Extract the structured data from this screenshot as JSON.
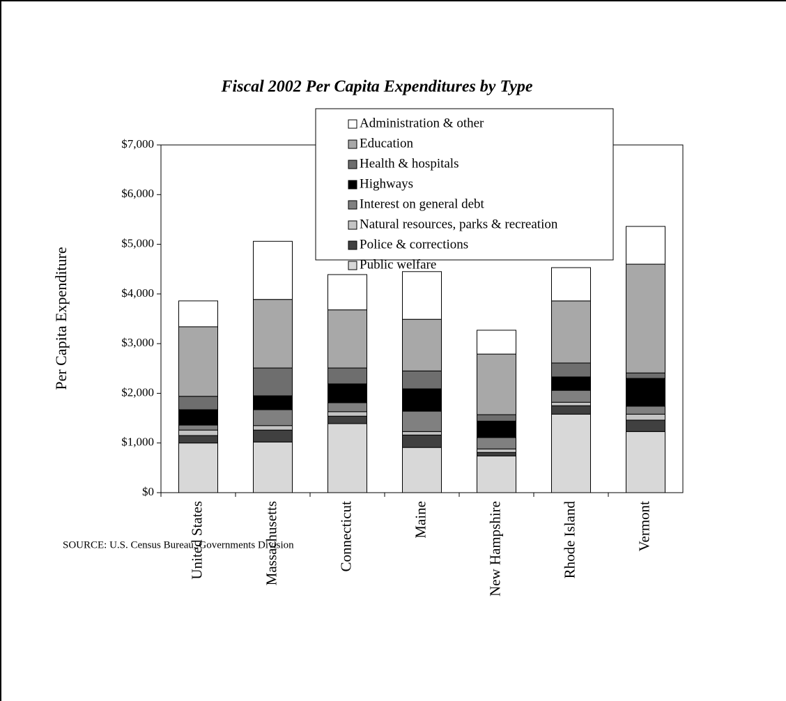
{
  "chart_data": {
    "type": "stacked-bar",
    "title": "Fiscal 2002 Per Capita Expenditures by Type",
    "y_label": "Per Capita Expenditure",
    "source": "SOURCE:  U.S. Census Bureau, Governments Division",
    "categories": [
      "United States",
      "Massachusetts",
      "Connecticut",
      "Maine",
      "New Hampshire",
      "Rhode Island",
      "Vermont"
    ],
    "series": [
      {
        "name": "Public welfare",
        "color": "#d8d8d8",
        "values": [
          1000,
          1020,
          1390,
          910,
          740,
          1580,
          1230
        ]
      },
      {
        "name": "Police & corrections",
        "color": "#404040",
        "values": [
          150,
          240,
          150,
          250,
          70,
          170,
          230
        ]
      },
      {
        "name": "Natural resources, parks & recreation",
        "color": "#c4c4c4",
        "values": [
          110,
          90,
          90,
          70,
          70,
          70,
          120
        ]
      },
      {
        "name": "Interest on general debt",
        "color": "#808080",
        "values": [
          100,
          320,
          180,
          410,
          230,
          240,
          160
        ]
      },
      {
        "name": "Highways",
        "color": "#000000",
        "values": [
          310,
          280,
          380,
          450,
          330,
          270,
          560
        ]
      },
      {
        "name": "Health & hospitals",
        "color": "#6e6e6e",
        "values": [
          270,
          560,
          320,
          360,
          130,
          280,
          110
        ]
      },
      {
        "name": "Education",
        "color": "#a8a8a8",
        "values": [
          1400,
          1380,
          1170,
          1040,
          1220,
          1250,
          2190
        ]
      },
      {
        "name": "Administration & other",
        "color": "#ffffff",
        "values": [
          520,
          1170,
          710,
          960,
          480,
          670,
          760
        ]
      }
    ],
    "ylim": [
      0,
      7000
    ],
    "yticks": [
      {
        "value": 0,
        "label": "$0"
      },
      {
        "value": 1000,
        "label": "$1,000"
      },
      {
        "value": 2000,
        "label": "$2,000"
      },
      {
        "value": 3000,
        "label": "$3,000"
      },
      {
        "value": 4000,
        "label": "$4,000"
      },
      {
        "value": 5000,
        "label": "$5,000"
      },
      {
        "value": 6000,
        "label": "$6,000"
      },
      {
        "value": 7000,
        "label": "$7,000"
      }
    ],
    "grid": false
  }
}
